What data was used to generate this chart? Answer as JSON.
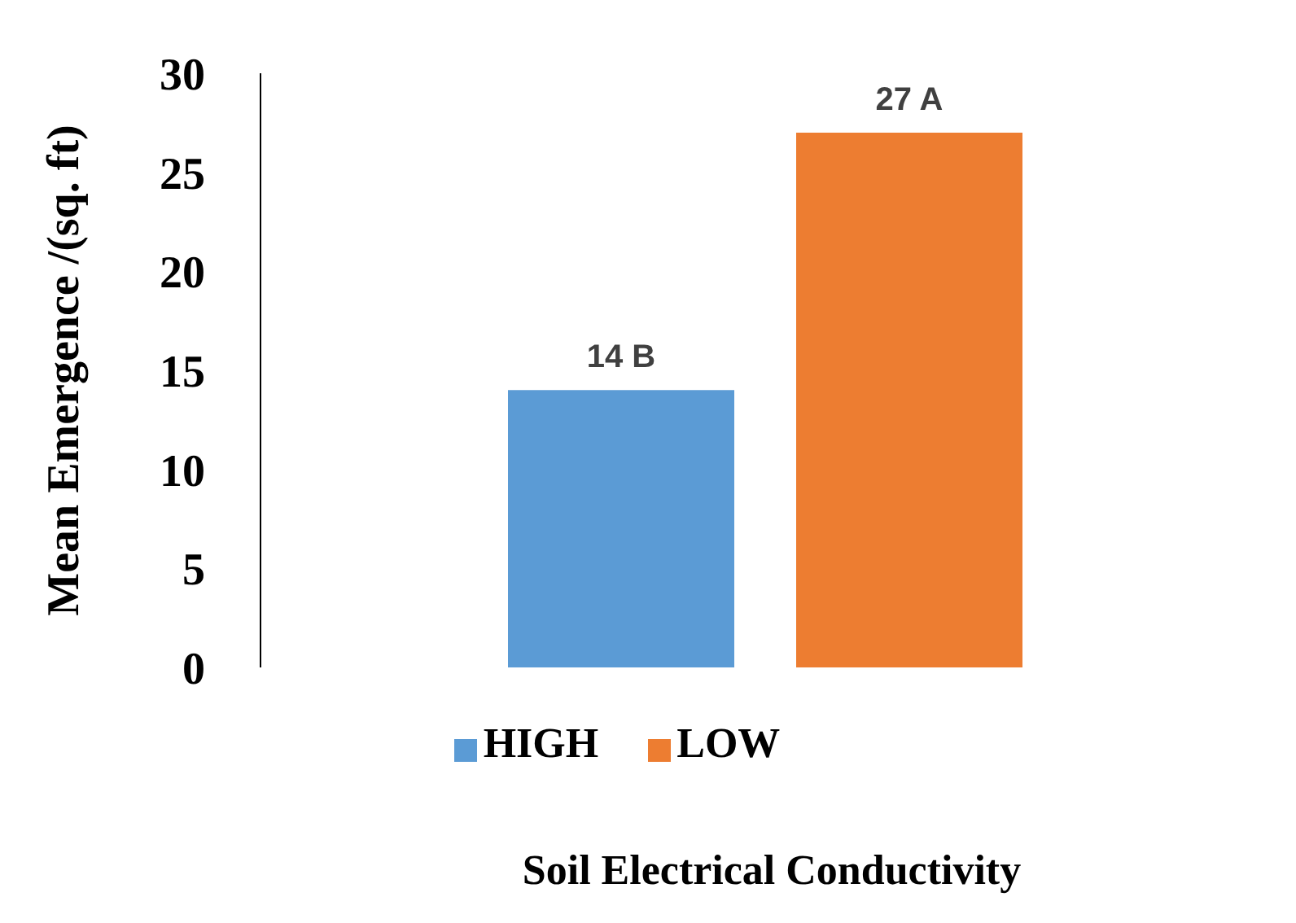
{
  "chart_data": {
    "type": "bar",
    "xlabel": "Soil Electrical Conductivity",
    "ylabel": "Mean Emergence /(sq. ft)",
    "categories": [
      null
    ],
    "series": [
      {
        "name": "HIGH",
        "color": "#5b9bd5",
        "values": [
          14
        ],
        "value_labels": [
          "14 B"
        ]
      },
      {
        "name": "LOW",
        "color": "#ed7d31",
        "values": [
          27
        ],
        "value_labels": [
          "27 A"
        ]
      }
    ],
    "ylim": [
      0,
      30
    ],
    "yticks": [
      0,
      5,
      10,
      15,
      20,
      25,
      30
    ],
    "grid": false,
    "legend": "bottom"
  }
}
